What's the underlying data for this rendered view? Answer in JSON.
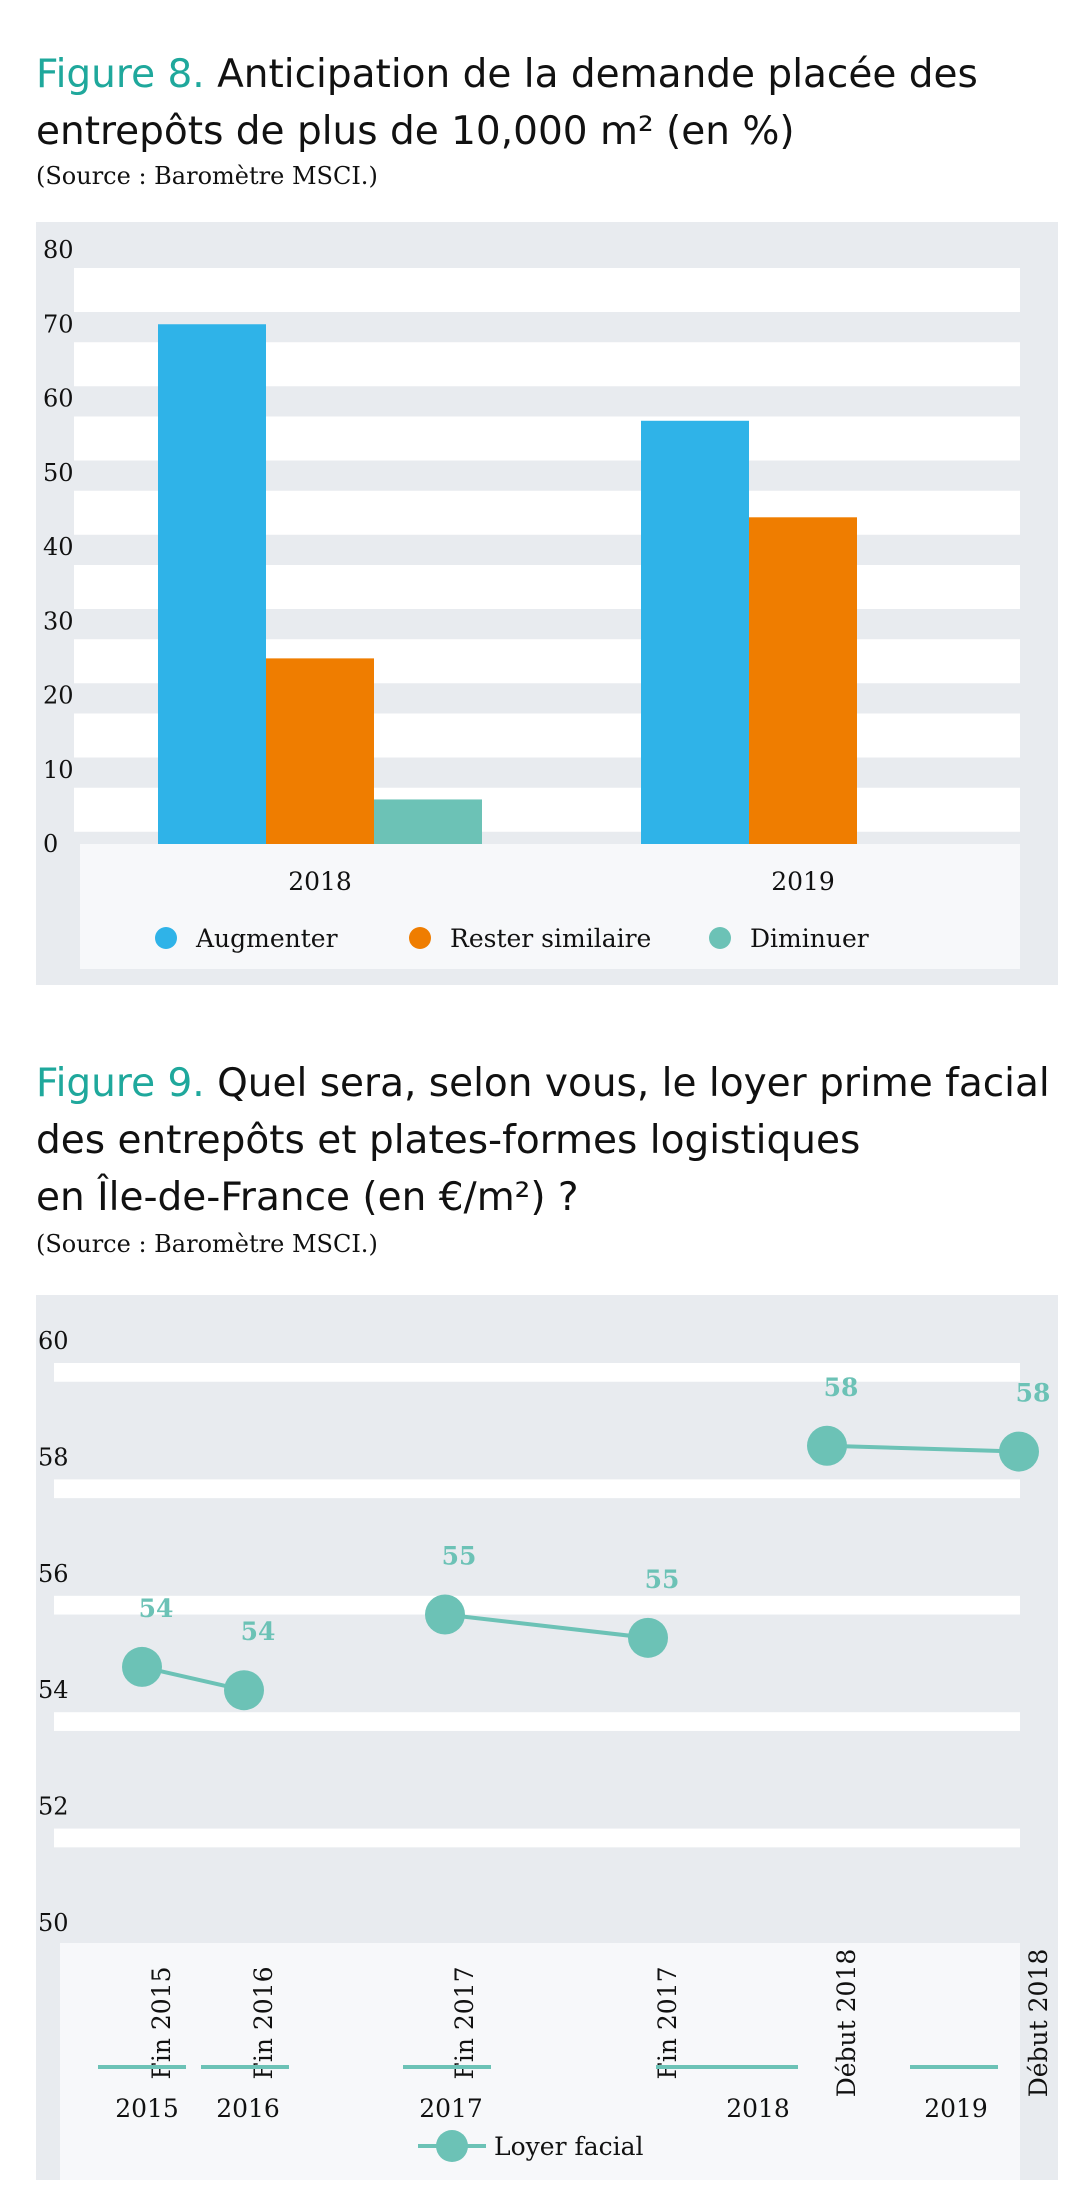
{
  "fig8": {
    "figure_label": "Figure 8.",
    "title_line1": "Anticipation de la demande placée des",
    "title_line2": "entrepôts de plus de 10,000 m² (en %)",
    "source": "(Source : Baromètre MSCI.)"
  },
  "fig9": {
    "figure_label": "Figure 9.",
    "title_line1": "Quel sera, selon vous, le loyer prime facial",
    "title_line2": "des entrepôts et plates-formes logistiques",
    "title_line3": "en Île-de-France (en €/m²) ?",
    "source": "(Source : Baromètre MSCI.)"
  },
  "colors": {
    "augmenter": "#2fb3e8",
    "rester": "#ef7d00",
    "diminuer": "#6cc2b6",
    "loyer": "#6cc2b6",
    "band_white": "#ffffff",
    "band_grey": "#e8ebef"
  },
  "chart_data": [
    {
      "type": "bar",
      "categories": [
        "2018",
        "2019"
      ],
      "series": [
        {
          "name": "Augmenter",
          "values": [
            70,
            57
          ]
        },
        {
          "name": "Rester similaire",
          "values": [
            25,
            44
          ]
        },
        {
          "name": "Diminuer",
          "values": [
            6,
            0
          ]
        }
      ],
      "yticks": [
        "0",
        "10",
        "20",
        "30",
        "40",
        "50",
        "60",
        "70",
        "80"
      ],
      "ylim": [
        0,
        80
      ],
      "legend": "bottom",
      "grid": true
    },
    {
      "type": "line",
      "series": [
        {
          "name": "Loyer facial",
          "points": [
            {
              "label": "Fin 2015",
              "value": 54.4,
              "data_label": "54"
            },
            {
              "label": "Fin 2016",
              "value": 54.0,
              "data_label": "54"
            },
            {
              "label": "Fin 2017",
              "value": 55.3,
              "data_label": "55"
            },
            {
              "label": "Fin 2017",
              "value": 54.9,
              "data_label": "55"
            },
            {
              "label": "Début 2018",
              "value": 58.2,
              "data_label": "58"
            },
            {
              "label": "Début 2018",
              "value": 58.1,
              "data_label": "58"
            }
          ]
        }
      ],
      "groups": [
        "2015",
        "2016",
        "2017",
        "2018",
        "2019"
      ],
      "yticks": [
        "50",
        "52",
        "54",
        "56",
        "58",
        "60"
      ],
      "ylim": [
        50,
        60
      ],
      "legend": "bottom",
      "grid": true
    }
  ]
}
